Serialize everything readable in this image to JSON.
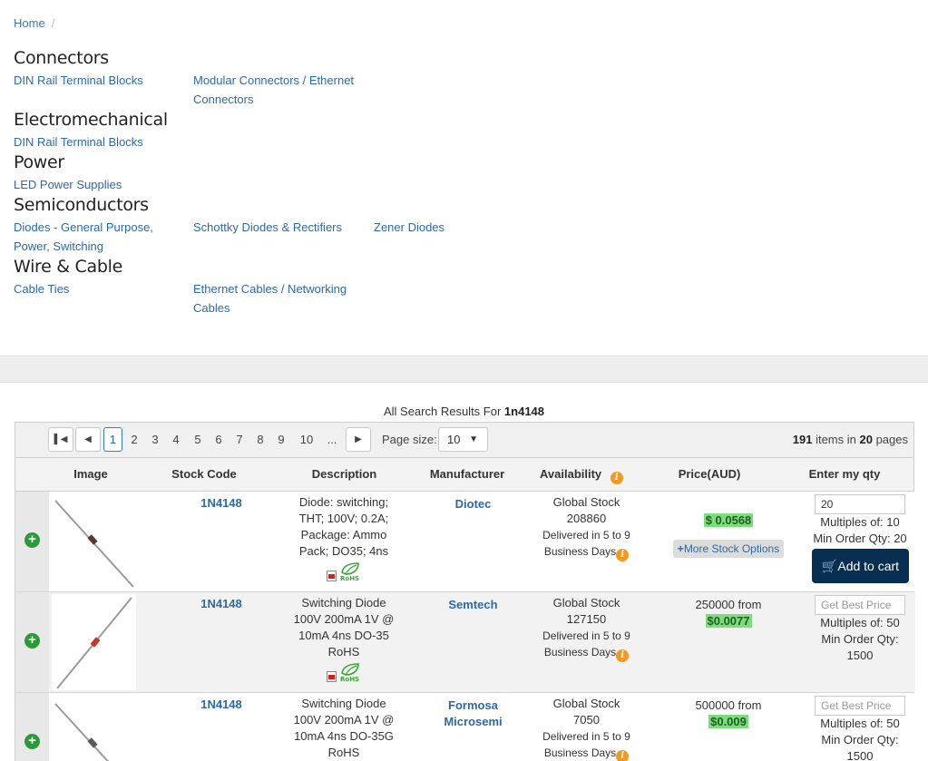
{
  "breadcrumb": {
    "home": "Home",
    "sep": "/"
  },
  "categories": [
    {
      "title": "Connectors",
      "links": [
        "DIN Rail Terminal Blocks",
        "Modular Connectors / Ethernet Connectors"
      ]
    },
    {
      "title": "Electromechanical",
      "links": [
        "DIN Rail Terminal Blocks"
      ]
    },
    {
      "title": "Power",
      "links": [
        "LED Power Supplies"
      ]
    },
    {
      "title": "Semiconductors",
      "links": [
        "Diodes - General Purpose, Power, Switching",
        "Schottky Diodes & Rectifiers",
        "Zener Diodes"
      ]
    },
    {
      "title": "Wire & Cable",
      "links": [
        "Cable Ties",
        "Ethernet Cables / Networking Cables"
      ]
    }
  ],
  "results": {
    "prefix": "All Search Results For",
    "query": "1n4148"
  },
  "pager": {
    "first_icon": "first-page-icon",
    "prev_icon": "prev-page-icon",
    "next_icon": "next-page-icon",
    "pages": [
      "1",
      "2",
      "3",
      "4",
      "5",
      "6",
      "7",
      "8",
      "9",
      "10",
      "..."
    ],
    "current": "1",
    "page_size_label": "Page size:",
    "page_size": "10",
    "items": "191",
    "items_label": "items in",
    "page_count": "20",
    "pages_label": "pages"
  },
  "columns": {
    "image": "Image",
    "stock_code": "Stock Code",
    "description": "Description",
    "manufacturer": "Manufacturer",
    "availability": "Availability",
    "price": "Price(AUD)",
    "qty": "Enter my qty"
  },
  "rows": [
    {
      "code": "1N4148",
      "description": "Diode: switching; THT; 100V; 0.2A; Package: Ammo Pack; DO35; 4ns",
      "manufacturer": "Diotec",
      "stock_label": "Global Stock",
      "stock": "208860",
      "delivery": "Delivered in 5 to 9",
      "delivery2": "Business Days",
      "price_prefix": "",
      "price": "$ 0.0568",
      "more_stock": "More Stock Options",
      "qty_value": "20",
      "multiples": "Multiples of: 10",
      "min_order": "Min Order Qty: 20",
      "cart": "Add to cart"
    },
    {
      "code": "1N4148",
      "description": "Switching Diode 100V 200mA 1V @ 10mA 4ns DO-35 RoHS",
      "manufacturer": "Semtech",
      "stock_label": "Global Stock",
      "stock": "127150",
      "delivery": "Delivered in 5 to 9",
      "delivery2": "Business Days",
      "price_prefix": "250000 from",
      "price": "$0.0077",
      "qty_placeholder": "Get Best Price",
      "multiples": "Multiples of: 50",
      "min_order": "Min Order Qty: 1500"
    },
    {
      "code": "1N4148",
      "description": "Switching Diode 100V 200mA 1V @ 10mA 4ns DO-35G RoHS",
      "manufacturer": "Formosa Microsemi",
      "stock_label": "Global Stock",
      "stock": "7050",
      "delivery": "Delivered in 5 to 9",
      "delivery2": "Business Days",
      "price_prefix": "500000 from",
      "price": "$0.009",
      "qty_placeholder": "Get Best Price",
      "multiples": "Multiples of: 50",
      "min_order": "Min Order Qty: 1500"
    }
  ],
  "colors": {
    "link": "#2d6aa3",
    "accent_green": "#2b9b3a",
    "price_highlight": "#7edc7e",
    "cart_button": "#062f52",
    "info_orange": "#f39a1e"
  }
}
